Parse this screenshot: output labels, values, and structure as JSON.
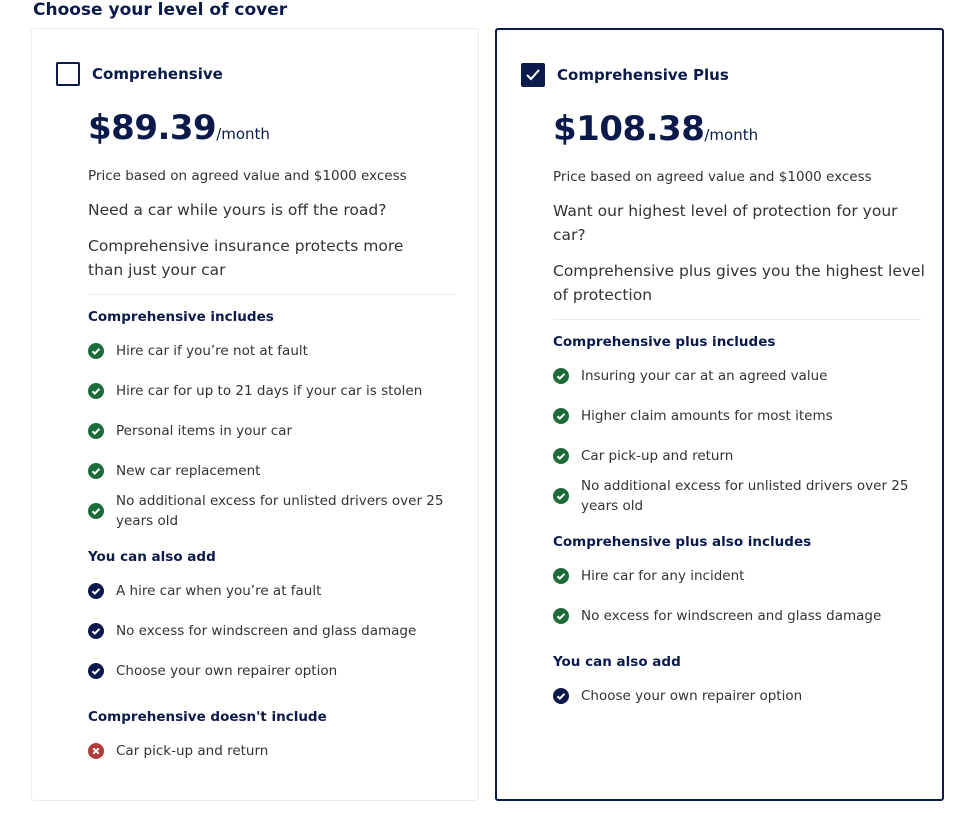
{
  "heading": "Choose your level of cover",
  "cards": [
    {
      "title": "Comprehensive",
      "price": "$89.39",
      "period": "/month",
      "price_note": "Price based on agreed value and $1000 excess",
      "question": "Need a car while yours is off the road?",
      "description": "Comprehensive insurance protects more than just your car",
      "sections": [
        {
          "heading": "Comprehensive includes",
          "items": [
            "Hire car if you’re not at fault",
            "Hire car for up to 21 days if your car is stolen",
            "Personal items in your car",
            "New car replacement",
            "No additional excess for unlisted drivers over 25 years old"
          ]
        },
        {
          "heading": "You can also add",
          "items": [
            "A hire car when you’re at fault",
            "No excess for windscreen and glass damage",
            "Choose your own repairer option"
          ]
        },
        {
          "heading": "Comprehensive doesn't include",
          "items": [
            "Car pick-up and return"
          ]
        }
      ]
    },
    {
      "title": "Comprehensive Plus",
      "price": "$108.38",
      "period": "/month",
      "price_note": "Price based on agreed value and $1000 excess",
      "question": "Want our highest level of protection for your car?",
      "description": "Comprehensive plus gives you the highest level of protection",
      "sections": [
        {
          "heading": "Comprehensive plus includes",
          "items": [
            "Insuring your car at an agreed value",
            "Higher claim amounts for most items",
            "Car pick-up and return",
            "No additional excess for unlisted drivers over 25 years old"
          ]
        },
        {
          "heading": "Comprehensive plus also includes",
          "items": [
            "Hire car for any incident",
            "No excess for windscreen and glass damage"
          ]
        },
        {
          "heading": "You can also add",
          "items": [
            "Choose your own repairer option"
          ]
        }
      ]
    }
  ]
}
